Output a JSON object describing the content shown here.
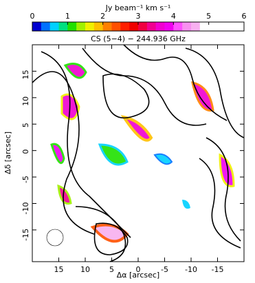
{
  "chart_data": {
    "type": "image",
    "title": "CS (5−4) − 244.936 GHz",
    "x_label": "Δα [arcsec]",
    "y_label": "Δδ [arcsec]",
    "xlim": [
      20,
      -20
    ],
    "ylim": [
      -21,
      20
    ],
    "xticks": [
      15,
      10,
      5,
      0,
      -5,
      -10,
      -15
    ],
    "yticks": [
      -15,
      -10,
      -5,
      0,
      5,
      10,
      15
    ],
    "colorbar": {
      "label": "Jy beam⁻¹ km s⁻¹",
      "lim": [
        0,
        6
      ],
      "ticks": [
        0,
        1,
        2,
        3,
        4,
        5,
        6
      ],
      "colors": [
        "#0000d0",
        "#0070ff",
        "#00d0ff",
        "#00e080",
        "#20e000",
        "#a0f000",
        "#f0f000",
        "#ffc000",
        "#ff8000",
        "#ff5000",
        "#ff2000",
        "#f00000",
        "#f00040",
        "#f00090",
        "#f000d0",
        "#f000f0",
        "#ff50ff",
        "#f890f0",
        "#f8b0f0",
        "#ffffff",
        "#ffffff",
        "#ffffff",
        "#ffffff",
        "#ffffff"
      ]
    }
  }
}
